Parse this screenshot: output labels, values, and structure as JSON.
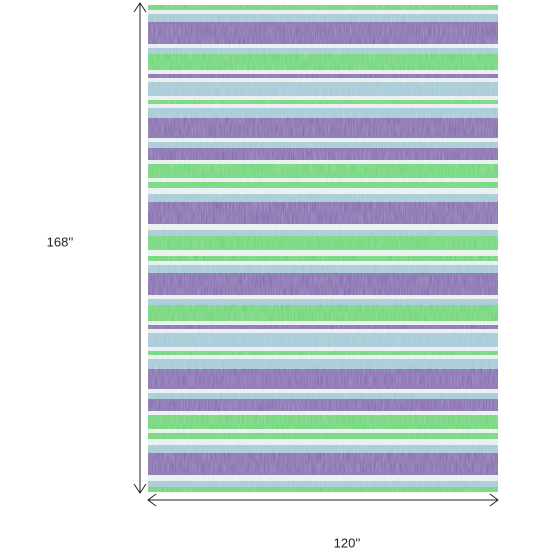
{
  "dimensions": {
    "height": "168''",
    "width": "120''"
  }
}
